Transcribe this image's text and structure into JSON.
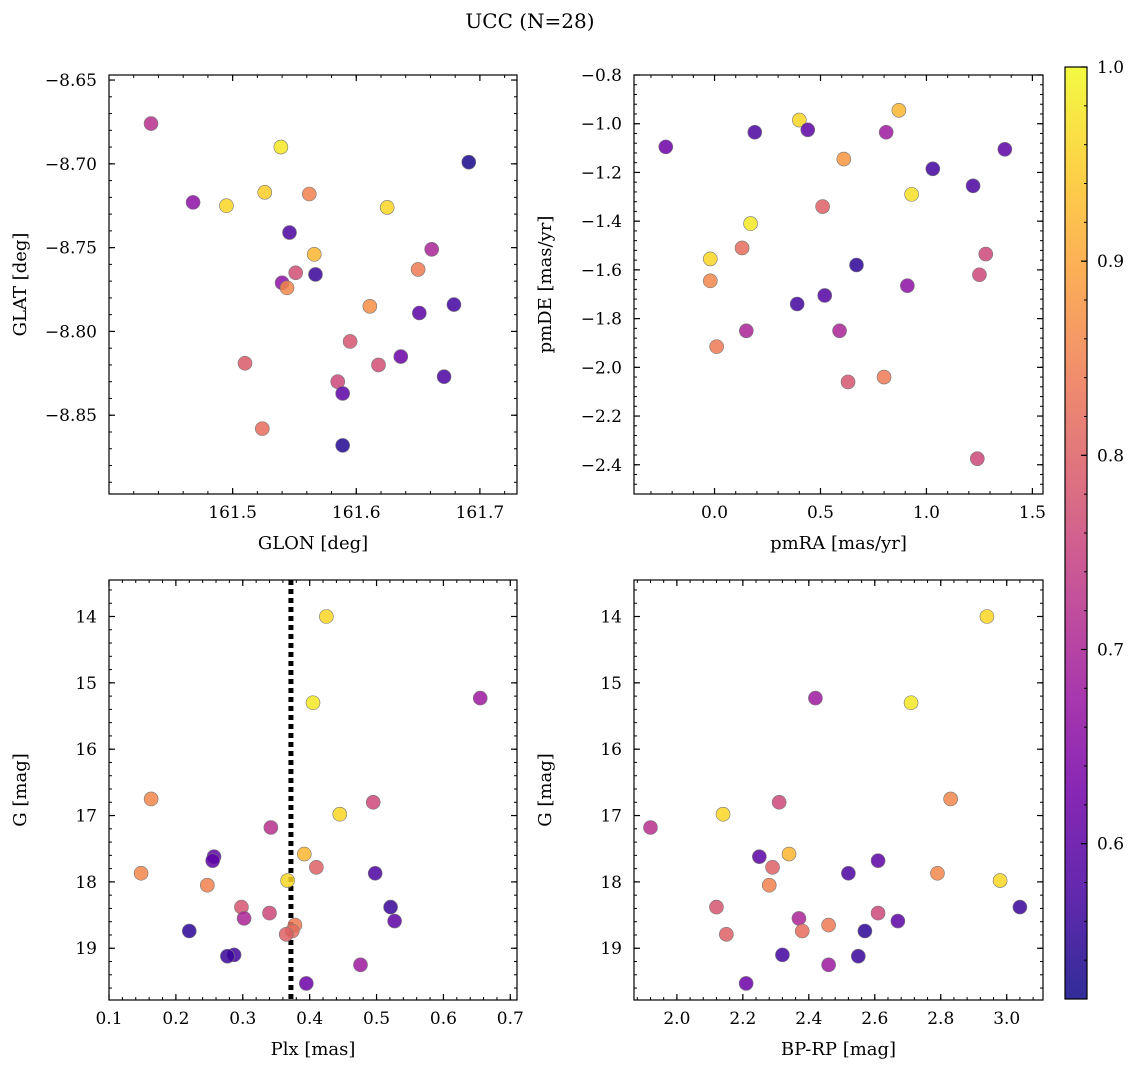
{
  "figure": {
    "title": "UCC (N=28)"
  },
  "chart_data": [
    {
      "type": "scatter",
      "panel": "sky",
      "xlabel": "GLON [deg]",
      "ylabel": "GLAT [deg]",
      "xlim": [
        161.4,
        161.73
      ],
      "ylim": [
        -8.897,
        -8.647
      ],
      "y_inverted": false,
      "xticks": [
        161.5,
        161.6,
        161.7
      ],
      "xticklabels": [
        "161.5",
        "161.6",
        "161.7"
      ],
      "yticks": [
        -8.85,
        -8.8,
        -8.75,
        -8.7,
        -8.65
      ],
      "yticklabels": [
        "−8.85",
        "−8.80",
        "−8.75",
        "−8.70",
        "−8.65"
      ],
      "points": [
        {
          "x": 161.434,
          "y": -8.676,
          "c": 0.72
        },
        {
          "x": 161.468,
          "y": -8.723,
          "c": 0.66
        },
        {
          "x": 161.495,
          "y": -8.725,
          "c": 0.96
        },
        {
          "x": 161.526,
          "y": -8.717,
          "c": 0.95
        },
        {
          "x": 161.539,
          "y": -8.69,
          "c": 0.98
        },
        {
          "x": 161.562,
          "y": -8.718,
          "c": 0.85
        },
        {
          "x": 161.546,
          "y": -8.741,
          "c": 0.58
        },
        {
          "x": 161.566,
          "y": -8.754,
          "c": 0.92
        },
        {
          "x": 161.551,
          "y": -8.765,
          "c": 0.77
        },
        {
          "x": 161.567,
          "y": -8.766,
          "c": 0.56
        },
        {
          "x": 161.54,
          "y": -8.771,
          "c": 0.66
        },
        {
          "x": 161.544,
          "y": -8.774,
          "c": 0.86
        },
        {
          "x": 161.51,
          "y": -8.819,
          "c": 0.79
        },
        {
          "x": 161.524,
          "y": -8.858,
          "c": 0.82
        },
        {
          "x": 161.611,
          "y": -8.785,
          "c": 0.87
        },
        {
          "x": 161.595,
          "y": -8.806,
          "c": 0.78
        },
        {
          "x": 161.585,
          "y": -8.83,
          "c": 0.76
        },
        {
          "x": 161.589,
          "y": -8.837,
          "c": 0.6
        },
        {
          "x": 161.589,
          "y": -8.868,
          "c": 0.54
        },
        {
          "x": 161.618,
          "y": -8.82,
          "c": 0.77
        },
        {
          "x": 161.636,
          "y": -8.815,
          "c": 0.62
        },
        {
          "x": 161.625,
          "y": -8.726,
          "c": 0.96
        },
        {
          "x": 161.65,
          "y": -8.763,
          "c": 0.84
        },
        {
          "x": 161.651,
          "y": -8.789,
          "c": 0.6
        },
        {
          "x": 161.661,
          "y": -8.751,
          "c": 0.7
        },
        {
          "x": 161.671,
          "y": -8.827,
          "c": 0.58
        },
        {
          "x": 161.679,
          "y": -8.784,
          "c": 0.57
        },
        {
          "x": 161.691,
          "y": -8.699,
          "c": 0.53
        }
      ]
    },
    {
      "type": "scatter",
      "panel": "proper-motion",
      "xlabel": "pmRA [mas/yr]",
      "ylabel": "pmDE [mas/yr]",
      "xlim": [
        -0.38,
        1.55
      ],
      "ylim": [
        -2.52,
        -0.8
      ],
      "y_inverted": false,
      "xticks": [
        0.0,
        0.5,
        1.0,
        1.5
      ],
      "xticklabels": [
        "0.0",
        "0.5",
        "1.0",
        "1.5"
      ],
      "yticks": [
        -2.4,
        -2.2,
        -2.0,
        -1.8,
        -1.6,
        -1.4,
        -1.2,
        -1.0,
        -0.8
      ],
      "yticklabels": [
        "−2.4",
        "−2.2",
        "−2.0",
        "−1.8",
        "−1.6",
        "−1.4",
        "−1.2",
        "−1.0",
        "−0.8"
      ],
      "points": [
        {
          "x": -0.23,
          "y": -1.095,
          "c": 0.62
        },
        {
          "x": 0.19,
          "y": -1.035,
          "c": 0.58
        },
        {
          "x": 0.4,
          "y": -0.985,
          "c": 0.96
        },
        {
          "x": 0.44,
          "y": -1.025,
          "c": 0.6
        },
        {
          "x": 0.61,
          "y": -1.145,
          "c": 0.88
        },
        {
          "x": 0.81,
          "y": -1.035,
          "c": 0.68
        },
        {
          "x": 0.87,
          "y": -0.945,
          "c": 0.92
        },
        {
          "x": 1.03,
          "y": -1.185,
          "c": 0.57
        },
        {
          "x": 1.22,
          "y": -1.255,
          "c": 0.58
        },
        {
          "x": 1.37,
          "y": -1.105,
          "c": 0.6
        },
        {
          "x": 0.93,
          "y": -1.29,
          "c": 0.97
        },
        {
          "x": 0.51,
          "y": -1.34,
          "c": 0.8
        },
        {
          "x": 0.17,
          "y": -1.41,
          "c": 0.98
        },
        {
          "x": 0.13,
          "y": -1.51,
          "c": 0.82
        },
        {
          "x": -0.02,
          "y": -1.555,
          "c": 0.96
        },
        {
          "x": -0.02,
          "y": -1.645,
          "c": 0.86
        },
        {
          "x": 0.67,
          "y": -1.58,
          "c": 0.55
        },
        {
          "x": 1.28,
          "y": -1.535,
          "c": 0.76
        },
        {
          "x": 1.25,
          "y": -1.62,
          "c": 0.76
        },
        {
          "x": 0.91,
          "y": -1.665,
          "c": 0.66
        },
        {
          "x": 0.52,
          "y": -1.705,
          "c": 0.59
        },
        {
          "x": 0.39,
          "y": -1.74,
          "c": 0.57
        },
        {
          "x": 0.15,
          "y": -1.85,
          "c": 0.7
        },
        {
          "x": 0.59,
          "y": -1.85,
          "c": 0.7
        },
        {
          "x": 0.01,
          "y": -1.915,
          "c": 0.84
        },
        {
          "x": 0.8,
          "y": -2.04,
          "c": 0.84
        },
        {
          "x": 0.63,
          "y": -2.06,
          "c": 0.78
        },
        {
          "x": 1.24,
          "y": -2.375,
          "c": 0.76
        }
      ]
    },
    {
      "type": "scatter",
      "panel": "parallax",
      "xlabel": "Plx [mas]",
      "ylabel": "G [mag]",
      "xlim": [
        0.1,
        0.71
      ],
      "ylim": [
        19.78,
        13.45
      ],
      "y_inverted": true,
      "vline": {
        "x": 0.372,
        "style": "dotted",
        "color": "#000000"
      },
      "xticks": [
        0.1,
        0.2,
        0.3,
        0.4,
        0.5,
        0.6,
        0.7
      ],
      "xticklabels": [
        "0.1",
        "0.2",
        "0.3",
        "0.4",
        "0.5",
        "0.6",
        "0.7"
      ],
      "yticks": [
        14,
        15,
        16,
        17,
        18,
        19
      ],
      "yticklabels": [
        "14",
        "15",
        "16",
        "17",
        "18",
        "19"
      ],
      "points": [
        {
          "x": 0.425,
          "y": 14.0,
          "c": 0.96
        },
        {
          "x": 0.655,
          "y": 15.23,
          "c": 0.68
        },
        {
          "x": 0.405,
          "y": 15.3,
          "c": 0.98
        },
        {
          "x": 0.163,
          "y": 16.75,
          "c": 0.86
        },
        {
          "x": 0.495,
          "y": 16.8,
          "c": 0.76
        },
        {
          "x": 0.445,
          "y": 16.98,
          "c": 0.96
        },
        {
          "x": 0.342,
          "y": 17.18,
          "c": 0.72
        },
        {
          "x": 0.392,
          "y": 17.58,
          "c": 0.92
        },
        {
          "x": 0.257,
          "y": 17.62,
          "c": 0.6
        },
        {
          "x": 0.255,
          "y": 17.68,
          "c": 0.6
        },
        {
          "x": 0.41,
          "y": 17.78,
          "c": 0.8
        },
        {
          "x": 0.148,
          "y": 17.87,
          "c": 0.86
        },
        {
          "x": 0.498,
          "y": 17.87,
          "c": 0.58
        },
        {
          "x": 0.367,
          "y": 17.98,
          "c": 0.96
        },
        {
          "x": 0.247,
          "y": 18.05,
          "c": 0.85
        },
        {
          "x": 0.298,
          "y": 18.38,
          "c": 0.78
        },
        {
          "x": 0.521,
          "y": 18.38,
          "c": 0.56
        },
        {
          "x": 0.34,
          "y": 18.47,
          "c": 0.76
        },
        {
          "x": 0.302,
          "y": 18.55,
          "c": 0.7
        },
        {
          "x": 0.527,
          "y": 18.59,
          "c": 0.6
        },
        {
          "x": 0.378,
          "y": 18.65,
          "c": 0.84
        },
        {
          "x": 0.374,
          "y": 18.74,
          "c": 0.82
        },
        {
          "x": 0.22,
          "y": 18.74,
          "c": 0.55
        },
        {
          "x": 0.365,
          "y": 18.79,
          "c": 0.8
        },
        {
          "x": 0.287,
          "y": 19.1,
          "c": 0.57
        },
        {
          "x": 0.277,
          "y": 19.12,
          "c": 0.56
        },
        {
          "x": 0.476,
          "y": 19.25,
          "c": 0.68
        },
        {
          "x": 0.395,
          "y": 19.53,
          "c": 0.62
        }
      ]
    },
    {
      "type": "scatter",
      "panel": "cmd",
      "xlabel": "BP-RP [mag]",
      "ylabel": "G [mag]",
      "xlim": [
        1.87,
        3.11
      ],
      "ylim": [
        19.78,
        13.45
      ],
      "y_inverted": true,
      "xticks": [
        2.0,
        2.2,
        2.4,
        2.6,
        2.8,
        3.0
      ],
      "xticklabels": [
        "2.0",
        "2.2",
        "2.4",
        "2.6",
        "2.8",
        "3.0"
      ],
      "yticks": [
        14,
        15,
        16,
        17,
        18,
        19
      ],
      "yticklabels": [
        "14",
        "15",
        "16",
        "17",
        "18",
        "19"
      ],
      "points": [
        {
          "x": 2.94,
          "y": 14.0,
          "c": 0.96
        },
        {
          "x": 2.42,
          "y": 15.23,
          "c": 0.68
        },
        {
          "x": 2.71,
          "y": 15.3,
          "c": 0.98
        },
        {
          "x": 2.83,
          "y": 16.75,
          "c": 0.86
        },
        {
          "x": 2.31,
          "y": 16.8,
          "c": 0.76
        },
        {
          "x": 2.14,
          "y": 16.98,
          "c": 0.96
        },
        {
          "x": 1.92,
          "y": 17.18,
          "c": 0.72
        },
        {
          "x": 2.34,
          "y": 17.58,
          "c": 0.92
        },
        {
          "x": 2.25,
          "y": 17.62,
          "c": 0.6
        },
        {
          "x": 2.61,
          "y": 17.68,
          "c": 0.6
        },
        {
          "x": 2.29,
          "y": 17.78,
          "c": 0.8
        },
        {
          "x": 2.79,
          "y": 17.87,
          "c": 0.86
        },
        {
          "x": 2.52,
          "y": 17.87,
          "c": 0.58
        },
        {
          "x": 2.98,
          "y": 17.98,
          "c": 0.96
        },
        {
          "x": 2.28,
          "y": 18.05,
          "c": 0.85
        },
        {
          "x": 2.12,
          "y": 18.38,
          "c": 0.78
        },
        {
          "x": 3.04,
          "y": 18.38,
          "c": 0.56
        },
        {
          "x": 2.61,
          "y": 18.47,
          "c": 0.76
        },
        {
          "x": 2.37,
          "y": 18.55,
          "c": 0.7
        },
        {
          "x": 2.67,
          "y": 18.59,
          "c": 0.6
        },
        {
          "x": 2.46,
          "y": 18.65,
          "c": 0.84
        },
        {
          "x": 2.38,
          "y": 18.74,
          "c": 0.82
        },
        {
          "x": 2.57,
          "y": 18.74,
          "c": 0.55
        },
        {
          "x": 2.15,
          "y": 18.79,
          "c": 0.8
        },
        {
          "x": 2.32,
          "y": 19.1,
          "c": 0.57
        },
        {
          "x": 2.55,
          "y": 19.12,
          "c": 0.56
        },
        {
          "x": 2.46,
          "y": 19.25,
          "c": 0.68
        },
        {
          "x": 2.21,
          "y": 19.53,
          "c": 0.62
        }
      ]
    }
  ],
  "colorbar": {
    "colormap": "plasma",
    "range": [
      0.52,
      1.0
    ],
    "ticks": [
      0.6,
      0.7,
      0.8,
      0.9,
      1.0
    ],
    "ticklabels": [
      "0.6",
      "0.7",
      "0.8",
      "0.9",
      "1.0"
    ],
    "colors": [
      "#0d0887",
      "#46039f",
      "#7201a8",
      "#9c179e",
      "#bd3786",
      "#d8576b",
      "#ed7953",
      "#fb9f3a",
      "#fdca26",
      "#f0f921"
    ]
  }
}
